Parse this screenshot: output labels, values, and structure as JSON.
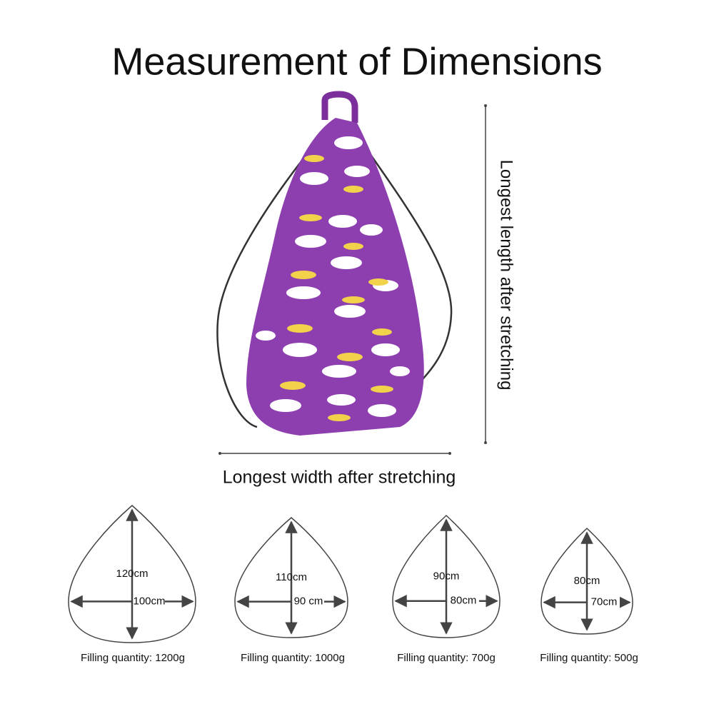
{
  "title": "Measurement of Dimensions",
  "length_label": "Longest length after stretching",
  "width_label": "Longest width after stretching",
  "sizes": [
    {
      "height": "120cm",
      "width": "100cm",
      "filling": "Filling quantity: 1200g"
    },
    {
      "height": "110cm",
      "width": "90 cm",
      "filling": "Filling quantity: 1000g"
    },
    {
      "height": "90cm",
      "width": "80cm",
      "filling": "Filling quantity: 700g"
    },
    {
      "height": "80cm",
      "width": "70cm",
      "filling": "Filling quantity: 500g"
    }
  ]
}
